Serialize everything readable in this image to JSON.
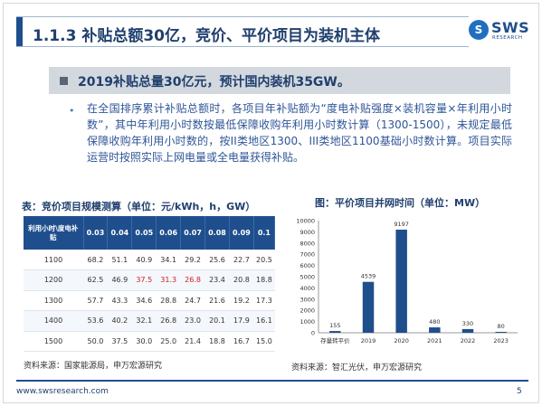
{
  "header": {
    "title": "1.1.3 补贴总额30亿，竞价、平价项目为装机主体",
    "logo_badge": "S",
    "logo_text": "SWS",
    "logo_sub": "RESEARCH"
  },
  "key_point": "2019补贴总量30亿元，预计国内装机35GW。",
  "bullet": "在全国排序累计补贴总额时，各项目年补贴额为“度电补贴强度×装机容量×年利用小时数”，其中年利用小时数按最低保障收购年利用小时数计算（1300-1500），未规定最低保障收购年利用小时数的，按II类地区1300、III类地区1100基础小时数计算。项目实际运营时按照实际上网电量或全电量获得补贴。",
  "table": {
    "title": "表：竞价项目规模测算（单位：元/kWh，h，GW）",
    "corner": "利用小时\\度电补贴",
    "headers": [
      "0.03",
      "0.04",
      "0.05",
      "0.06",
      "0.07",
      "0.08",
      "0.09",
      "0.1"
    ],
    "rows": [
      {
        "hours": "1100",
        "values": [
          "68.2",
          "51.1",
          "40.9",
          "34.1",
          "29.2",
          "25.6",
          "22.7",
          "20.5"
        ],
        "highlight": []
      },
      {
        "hours": "1200",
        "values": [
          "62.5",
          "46.9",
          "37.5",
          "31.3",
          "26.8",
          "23.4",
          "20.8",
          "18.8"
        ],
        "highlight": [
          2,
          3,
          4
        ]
      },
      {
        "hours": "1300",
        "values": [
          "57.7",
          "43.3",
          "34.6",
          "28.8",
          "24.7",
          "21.6",
          "19.2",
          "17.3"
        ],
        "highlight": []
      },
      {
        "hours": "1400",
        "values": [
          "53.6",
          "40.2",
          "32.1",
          "26.8",
          "23.0",
          "20.1",
          "17.9",
          "16.1"
        ],
        "highlight": []
      },
      {
        "hours": "1500",
        "values": [
          "50.0",
          "37.5",
          "30.0",
          "25.0",
          "21.4",
          "18.8",
          "16.7",
          "15.0"
        ],
        "highlight": []
      }
    ],
    "source": "资料来源：国家能源局，申万宏源研究",
    "highlight_color": "#d02020"
  },
  "chart_data": {
    "type": "bar",
    "title": "图：平价项目并网时间（单位：MW）",
    "categories": [
      "存量转平价",
      "2019",
      "2020",
      "2021",
      "2022",
      "2023"
    ],
    "values": [
      155,
      4539,
      9197,
      480,
      330,
      80
    ],
    "value_labels": [
      "155",
      "4539",
      "9197",
      "480",
      "330",
      "80"
    ],
    "ylim": [
      0,
      10000
    ],
    "yticks": [
      "0",
      "1000",
      "2000",
      "3000",
      "4000",
      "5000",
      "6000",
      "7000",
      "8000",
      "9000",
      "10000"
    ],
    "grid": false,
    "bar_color": "#1f4e8c",
    "source": "资料来源：智汇光伏，申万宏源研究"
  },
  "footer": {
    "url": "www.swsresearch.com",
    "page": "5"
  },
  "colors": {
    "brand": "#1f4e8c",
    "bullet_text": "#2f5597"
  }
}
